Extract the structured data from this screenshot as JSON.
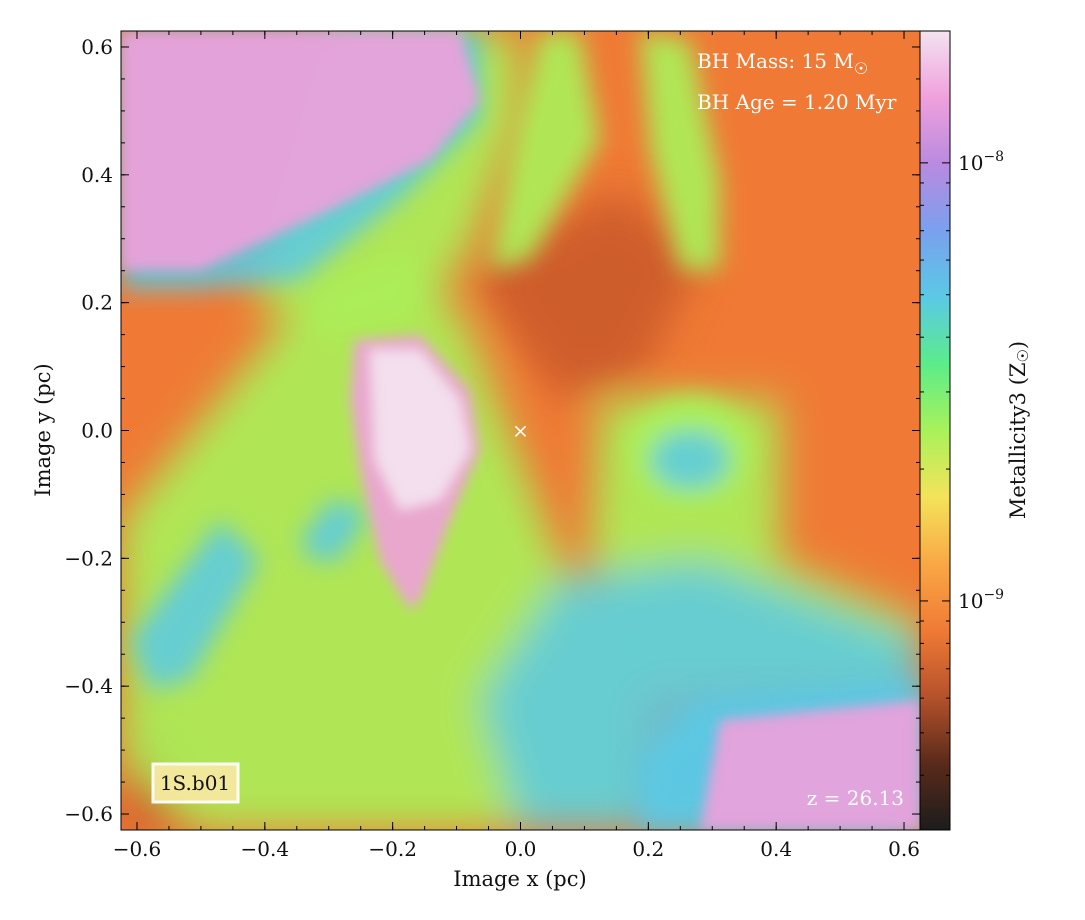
{
  "chart_data": {
    "type": "heatmap",
    "xlabel": "Image x  (pc)",
    "ylabel": "Image y  (pc)",
    "xlim": [
      -0.625,
      0.625
    ],
    "ylim": [
      -0.625,
      0.625
    ],
    "xticks": [
      -0.6,
      -0.4,
      -0.2,
      0.0,
      0.2,
      0.4,
      0.6
    ],
    "yticks": [
      -0.6,
      -0.4,
      -0.2,
      0.0,
      0.2,
      0.4,
      0.6
    ],
    "xtick_labels": [
      "−0.6",
      "−0.4",
      "−0.2",
      "0.0",
      "0.2",
      "0.4",
      "0.6"
    ],
    "ytick_labels": [
      "−0.6",
      "−0.4",
      "−0.2",
      "0.0",
      "0.2",
      "0.4",
      "0.6"
    ],
    "colorbar": {
      "label": "Metallicity3  (Z",
      "label_unit_symbol": "☉",
      "label_close": ")",
      "scale": "log",
      "range": [
        3e-10,
        2e-08
      ],
      "ticks": [
        1e-09,
        1e-08
      ],
      "tick_base": "10",
      "tick_exponents": [
        "−9",
        "−8"
      ],
      "colormap_stops": [
        "#1c1c1c",
        "#5a2a1a",
        "#b5522b",
        "#f07a35",
        "#f9a845",
        "#f4e35a",
        "#a8f25a",
        "#5cec8a",
        "#5bc9e6",
        "#7aa0ee",
        "#b98ae0",
        "#f0a0dc",
        "#f3e3f0"
      ]
    },
    "marker": {
      "x": 0.0,
      "y": 0.0,
      "symbol": "×",
      "color": "#ffffff"
    },
    "annotations": {
      "bh_mass_prefix": "BH Mass: 15 M",
      "bh_mass_symbol": "☉",
      "bh_age": "BH Age = 1.20 Myr",
      "redshift": "z = 26.13",
      "sim_label": "1S.b01"
    },
    "field_colors": {
      "background": "#f07a35",
      "dark_orange": "#c8582c",
      "green": "#a8f25a",
      "cyan": "#5bc9e6",
      "pink": "#f0a0dc",
      "pale_pink": "#f3e3f0",
      "label_box_fill": "#f6e8a0"
    }
  }
}
